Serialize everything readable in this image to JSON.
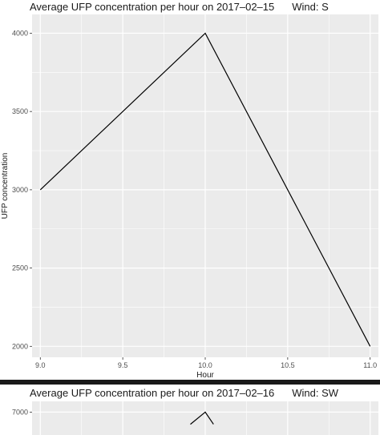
{
  "chart_data": [
    {
      "type": "line",
      "title": "Average UFP concentration per hour on 2017–02–15",
      "wind": "Wind: S",
      "xlabel": "Hour",
      "ylabel": "UFP concentration",
      "x": [
        9.0,
        10.0,
        11.0
      ],
      "y": [
        3000,
        4000,
        2000
      ],
      "xlim": [
        8.95,
        11.05
      ],
      "ylim": [
        1930,
        4120
      ],
      "x_ticks": [
        9.0,
        9.5,
        10.0,
        10.5,
        11.0
      ],
      "x_tick_labels": [
        "9.0",
        "9.5",
        "10.0",
        "10.5",
        "11.0"
      ],
      "y_ticks": [
        2000,
        2500,
        3000,
        3500,
        4000
      ],
      "y_tick_labels": [
        "2000",
        "2500",
        "3000",
        "3500",
        "4000"
      ],
      "grid": true,
      "colors": {
        "panel": "#ebebeb",
        "grid": "#ffffff",
        "line": "#000000"
      }
    },
    {
      "type": "line",
      "title": "Average UFP concentration per hour on 2017–02–16",
      "wind": "Wind: SW",
      "x": [
        9.91,
        10.0,
        10.05
      ],
      "y": [
        6830,
        7000,
        6830
      ],
      "xlim": [
        8.95,
        11.05
      ],
      "ylim": [
        6680,
        7150
      ],
      "x_ticks": [
        9.0,
        9.5,
        10.0,
        10.5,
        11.0
      ],
      "y_ticks": [
        7000
      ],
      "y_tick_labels": [
        "7000"
      ],
      "grid": true,
      "colors": {
        "panel": "#ebebeb",
        "grid": "#ffffff",
        "line": "#000000"
      }
    }
  ]
}
